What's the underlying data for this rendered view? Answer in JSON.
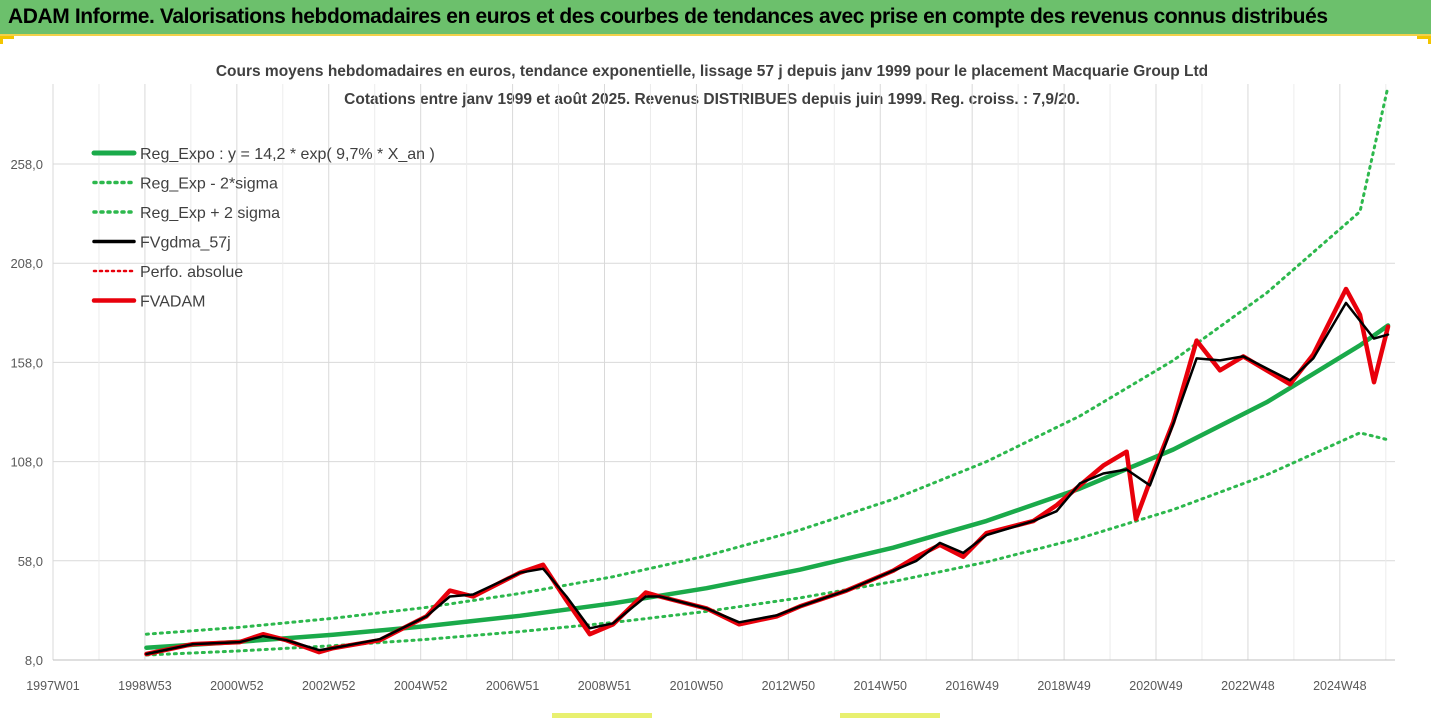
{
  "header": {
    "title": "ADAM Informe. Valorisations hebdomadaires en euros et des courbes de tendances avec prise en compte des revenus connus distribués"
  },
  "colors": {
    "header_bg": "#6cc06c",
    "trend_green": "#1aaa4a",
    "band_green": "#2db84d",
    "smoothed": "#000000",
    "price_red": "#e8000b",
    "grid": "#d9d9d9"
  },
  "chart_data": {
    "type": "line",
    "title": "Cours moyens hebdomadaires en euros, tendance exponentielle, lissage 57 j depuis janv 1999 pour le placement Macquarie Group Ltd",
    "subtitle": "Cotations entre janv 1999 et août 2025. Revenus DISTRIBUES depuis juin 1999. Reg. croiss. : 7,9/20.",
    "xlabel": "",
    "ylabel": "",
    "x_ticks": [
      "1997W01",
      "1998W53",
      "2000W52",
      "2002W52",
      "2004W52",
      "2006W51",
      "2008W51",
      "2010W50",
      "2012W50",
      "2014W50",
      "2016W49",
      "2018W49",
      "2020W49",
      "2022W48",
      "2024W48"
    ],
    "x_range": [
      1997.0,
      2025.75
    ],
    "y_ticks": [
      "8,0",
      "58,0",
      "108,0",
      "158,0",
      "208,0",
      "258,0"
    ],
    "ylim": [
      8,
      258
    ],
    "grid": "vertical and horizontal",
    "legend_position": "top-left",
    "legend": [
      "Reg_Expo : y = 14,2 * exp( 9,7% *  X_an )",
      "Reg_Exp - 2*sigma",
      "Reg_Exp + 2 sigma",
      "FVgdma_57j",
      "Perfo. absolue",
      "FVADAM"
    ],
    "series": [
      {
        "name": "Reg_Expo : y = 14,2 * exp( 9,7% *  X_an )",
        "style": "solid-thick",
        "color": "#1aaa4a",
        "x": [
          1999.0,
          2001.0,
          2003.0,
          2005.0,
          2007.0,
          2009.0,
          2011.0,
          2013.0,
          2015.0,
          2017.0,
          2019.0,
          2021.0,
          2023.0,
          2025.0,
          2025.6
        ],
        "y": [
          14.2,
          17.2,
          20.7,
          25.1,
          30.3,
          36.6,
          44.2,
          53.5,
          64.6,
          78.1,
          94.4,
          114.1,
          137.9,
          166.6,
          176.6
        ]
      },
      {
        "name": "Reg_Exp - 2*sigma",
        "style": "dotted",
        "color": "#2db84d",
        "x": [
          1999.0,
          2001.0,
          2003.0,
          2005.0,
          2007.0,
          2009.0,
          2011.0,
          2013.0,
          2015.0,
          2017.0,
          2019.0,
          2021.0,
          2023.0,
          2025.0,
          2025.6
        ],
        "y": [
          10.5,
          12.6,
          15.2,
          18.4,
          22.3,
          26.9,
          32.5,
          39.3,
          47.5,
          57.4,
          69.4,
          83.8,
          101.3,
          122.5,
          119.0
        ]
      },
      {
        "name": "Reg_Exp + 2 sigma",
        "style": "dotted",
        "color": "#2db84d",
        "x": [
          1999.0,
          2001.0,
          2003.0,
          2005.0,
          2007.0,
          2009.0,
          2011.0,
          2013.0,
          2015.0,
          2017.0,
          2019.0,
          2021.0,
          2023.0,
          2025.0,
          2025.6
        ],
        "y": [
          21.0,
          24.5,
          29.0,
          34.5,
          41.5,
          50.0,
          60.5,
          73.5,
          89.0,
          108.0,
          131.0,
          159.0,
          193.0,
          234.0,
          297.0
        ]
      },
      {
        "name": "FVgdma_57j",
        "style": "solid",
        "color": "#000000",
        "x": [
          1999.0,
          2000.0,
          2001.0,
          2001.5,
          2002.0,
          2002.7,
          2003.0,
          2004.0,
          2005.0,
          2005.5,
          2006.0,
          2007.0,
          2007.5,
          2008.0,
          2008.5,
          2009.0,
          2009.7,
          2010.0,
          2011.0,
          2011.7,
          2012.5,
          2013.0,
          2014.0,
          2015.0,
          2015.5,
          2016.0,
          2016.5,
          2017.0,
          2018.0,
          2018.5,
          2019.0,
          2019.5,
          2020.0,
          2020.5,
          2021.0,
          2021.5,
          2022.0,
          2022.5,
          2023.0,
          2023.5,
          2024.0,
          2024.7,
          2025.3,
          2025.6
        ],
        "y": [
          11.0,
          16.0,
          17.0,
          20.0,
          18.0,
          13.0,
          14.0,
          18.5,
          30.0,
          40.0,
          41.0,
          52.0,
          54.0,
          40.0,
          24.0,
          26.5,
          40.0,
          40.0,
          34.0,
          27.0,
          30.5,
          35.0,
          43.0,
          53.0,
          58.0,
          67.0,
          62.0,
          71.0,
          78.0,
          83.0,
          97.0,
          102.0,
          104.0,
          96.0,
          127.0,
          160.0,
          159.0,
          161.0,
          155.0,
          149.0,
          160.0,
          188.0,
          170.0,
          172.0
        ]
      },
      {
        "name": "Perfo. absolue",
        "style": "dotted",
        "color": "#e8000b",
        "x": [
          1999.0,
          2025.6
        ],
        "y": [
          11.0,
          172.0
        ]
      },
      {
        "name": "FVADAM",
        "style": "solid-thick",
        "color": "#e8000b",
        "x": [
          1999.0,
          2000.0,
          2001.0,
          2001.5,
          2002.0,
          2002.7,
          2003.0,
          2004.0,
          2005.0,
          2005.5,
          2006.0,
          2007.0,
          2007.5,
          2008.0,
          2008.5,
          2009.0,
          2009.7,
          2010.0,
          2011.0,
          2011.7,
          2012.5,
          2013.0,
          2014.0,
          2015.0,
          2015.5,
          2016.0,
          2016.5,
          2017.0,
          2018.0,
          2018.5,
          2019.0,
          2019.5,
          2020.0,
          2020.2,
          2020.5,
          2021.0,
          2021.5,
          2022.0,
          2022.5,
          2023.0,
          2023.5,
          2024.0,
          2024.7,
          2025.0,
          2025.3,
          2025.6
        ],
        "y": [
          11.0,
          16.0,
          17.0,
          21.0,
          18.0,
          12.0,
          14.0,
          18.0,
          30.0,
          43.0,
          40.0,
          52.0,
          56.0,
          38.0,
          21.0,
          26.0,
          42.0,
          40.0,
          34.0,
          26.0,
          30.0,
          35.0,
          43.0,
          53.0,
          60.0,
          66.0,
          60.0,
          72.0,
          78.0,
          86.0,
          96.0,
          106.0,
          113.0,
          79.0,
          98.0,
          128.0,
          169.0,
          154.0,
          161.0,
          154.0,
          147.0,
          162.0,
          195.0,
          182.0,
          148.0,
          176.0
        ]
      }
    ]
  }
}
